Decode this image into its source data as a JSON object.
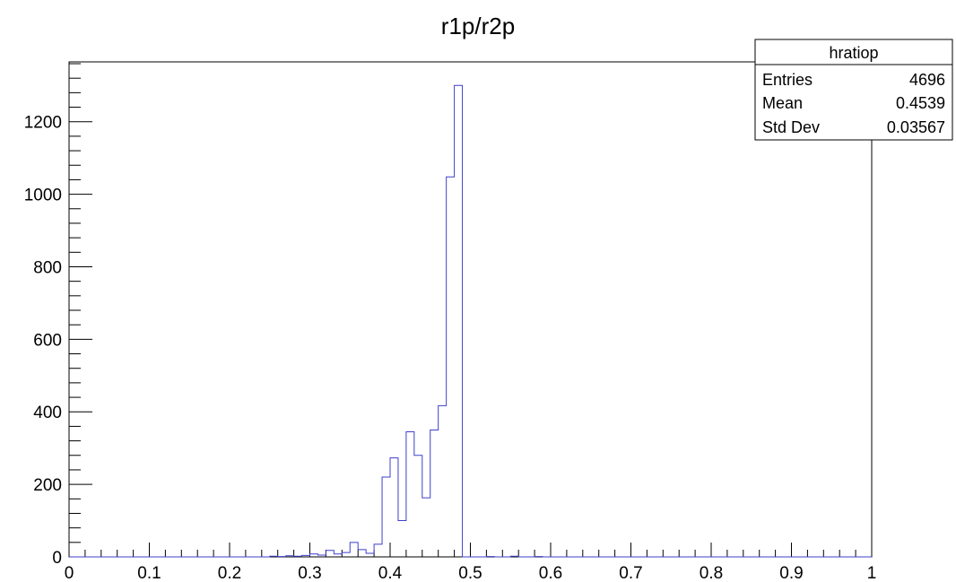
{
  "chart_data": {
    "type": "bar",
    "title": "r1p/r2p",
    "xlabel": "",
    "ylabel": "",
    "xlim": [
      0,
      1
    ],
    "ylim": [
      0,
      1365
    ],
    "x_ticks": [
      "0",
      "0.1",
      "0.2",
      "0.3",
      "0.4",
      "0.5",
      "0.6",
      "0.7",
      "0.8",
      "0.9",
      "1"
    ],
    "y_ticks": [
      "0",
      "200",
      "400",
      "600",
      "800",
      "1000",
      "1200"
    ],
    "bin_width": 0.01,
    "series": [
      {
        "line_color": "#3f3fcc",
        "bins": [
          {
            "x": 0.25,
            "y": 2
          },
          {
            "x": 0.26,
            "y": 1
          },
          {
            "x": 0.27,
            "y": 3
          },
          {
            "x": 0.28,
            "y": 2
          },
          {
            "x": 0.29,
            "y": 4
          },
          {
            "x": 0.3,
            "y": 8
          },
          {
            "x": 0.31,
            "y": 5
          },
          {
            "x": 0.32,
            "y": 18
          },
          {
            "x": 0.33,
            "y": 8
          },
          {
            "x": 0.34,
            "y": 12
          },
          {
            "x": 0.35,
            "y": 40
          },
          {
            "x": 0.36,
            "y": 20
          },
          {
            "x": 0.37,
            "y": 10
          },
          {
            "x": 0.38,
            "y": 35
          },
          {
            "x": 0.39,
            "y": 220
          },
          {
            "x": 0.4,
            "y": 273
          },
          {
            "x": 0.41,
            "y": 100
          },
          {
            "x": 0.42,
            "y": 345
          },
          {
            "x": 0.43,
            "y": 280
          },
          {
            "x": 0.44,
            "y": 163
          },
          {
            "x": 0.45,
            "y": 350
          },
          {
            "x": 0.46,
            "y": 417
          },
          {
            "x": 0.47,
            "y": 1048
          },
          {
            "x": 0.48,
            "y": 1300
          },
          {
            "x": 0.52,
            "y": 1
          },
          {
            "x": 0.55,
            "y": 2
          },
          {
            "x": 0.58,
            "y": 1
          }
        ]
      }
    ],
    "stats": {
      "name": "hratiop",
      "rows": [
        {
          "label": "Entries",
          "value": "4696"
        },
        {
          "label": "Mean",
          "value": "0.4539"
        },
        {
          "label": "Std Dev",
          "value": "0.03567"
        }
      ]
    }
  }
}
